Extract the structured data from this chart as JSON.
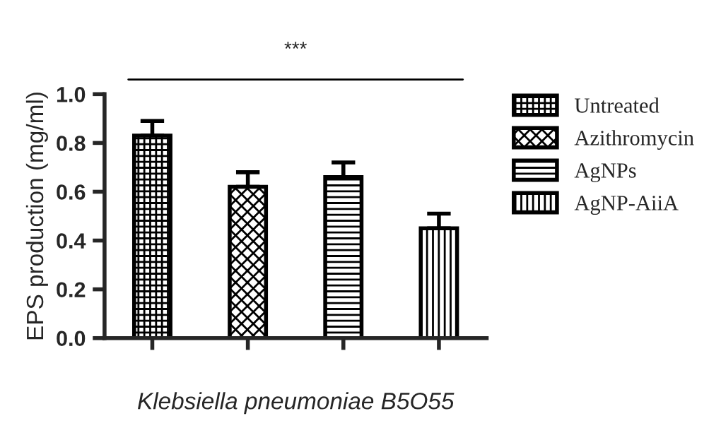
{
  "chart_data": {
    "type": "bar",
    "xlabel": "Klebsiella pneumoniae B5O55",
    "ylabel": "EPS production (mg/ml)",
    "categories": [
      null,
      null,
      null,
      null
    ],
    "series": [
      {
        "name": "Untreated",
        "color": "#000000",
        "values": [
          0.83,
          null,
          null,
          null
        ],
        "errors": [
          0.06,
          null,
          null,
          null
        ]
      },
      {
        "name": "Azithromycin",
        "color": "#000000",
        "values": [
          null,
          0.62,
          null,
          null
        ],
        "errors": [
          null,
          0.06,
          null,
          null
        ]
      },
      {
        "name": "AgNPs",
        "color": "#000000",
        "values": [
          null,
          null,
          0.66,
          null
        ],
        "errors": [
          null,
          null,
          0.06,
          null
        ]
      },
      {
        "name": "AgNP-AiiA",
        "color": "#000000",
        "values": [
          null,
          null,
          null,
          0.45
        ],
        "errors": [
          null,
          null,
          null,
          0.06
        ]
      }
    ],
    "ylim": [
      0,
      1.0
    ],
    "yticks": [
      {
        "value": 0,
        "label": "0.0"
      },
      0.2,
      0.4,
      0.6,
      0.8,
      {
        "value": 1,
        "label": "1.0"
      }
    ],
    "annotations": [
      "***"
    ],
    "legend": "right",
    "grid": false
  }
}
